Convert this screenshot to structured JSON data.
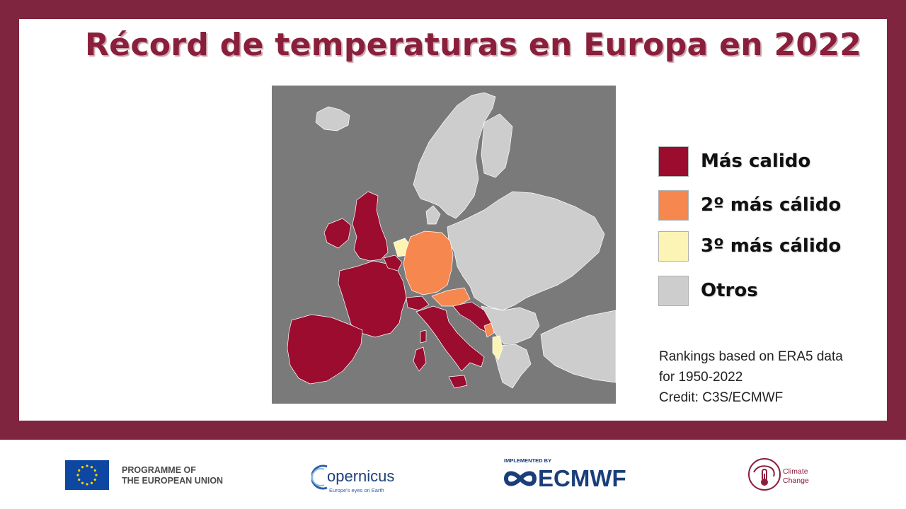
{
  "title": "Récord de temperaturas en Europa en 2022",
  "legend": {
    "items": [
      {
        "label": "Más calido",
        "color": "#9b0c2e"
      },
      {
        "label": "2º más cálido",
        "color": "#f6874e"
      },
      {
        "label": "3º más cálido",
        "color": "#fcf4b4"
      },
      {
        "label": "Otros",
        "color": "#cdcdcd"
      }
    ]
  },
  "map": {
    "background_color": "#7a7a7a",
    "warmest": [
      "United Kingdom",
      "Ireland",
      "France",
      "Spain",
      "Portugal",
      "Italy",
      "Switzerland",
      "Belgium",
      "Slovenia",
      "Croatia",
      "Montenegro"
    ],
    "second_warmest": [
      "Germany",
      "Austria",
      "Luxembourg",
      "Bosnia (coast)"
    ],
    "third_warmest": [
      "Netherlands",
      "Albania"
    ],
    "others": [
      "Norway",
      "Sweden",
      "Finland",
      "Poland",
      "Baltics",
      "Belarus",
      "Ukraine",
      "Romania",
      "Hungary",
      "Serbia",
      "Bulgaria",
      "Greece",
      "Turkey",
      "Denmark",
      "Iceland"
    ]
  },
  "notes": {
    "line1": "Rankings based on ERA5 data",
    "line2": "for 1950-2022",
    "line3": "Credit: C3S/ECMWF"
  },
  "footer": {
    "eu_line1": "PROGRAMME OF",
    "eu_line2": "THE EUROPEAN UNION",
    "copernicus_word": "opernicus",
    "copernicus_tagline": "Europe's eyes on Earth",
    "ecmwf_implemented": "IMPLEMENTED BY",
    "ecmwf_word": "ECMWF",
    "cc_line1": "Climate",
    "cc_line2": "Change"
  },
  "colors": {
    "frame": "#7f2540",
    "title": "#8a1f3c",
    "eu_blue": "#0e47a1",
    "eu_star": "#ffd500",
    "ecmwf_blue": "#1a3e7a"
  }
}
